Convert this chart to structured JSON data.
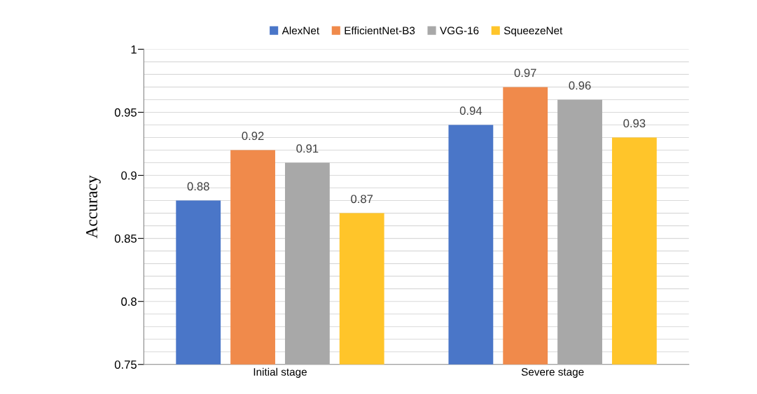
{
  "chart_data": {
    "type": "bar",
    "ylabel": "Accuracy",
    "categories": [
      "Initial stage",
      "Severe stage"
    ],
    "series": [
      {
        "name": "AlexNet",
        "color": "#4a76c8",
        "values": [
          0.88,
          0.94
        ]
      },
      {
        "name": "EfficientNet-B3",
        "color": "#f08a4b",
        "values": [
          0.92,
          0.97
        ]
      },
      {
        "name": "VGG-16",
        "color": "#a8a8a8",
        "values": [
          0.91,
          0.96
        ]
      },
      {
        "name": "SqueezeNet",
        "color": "#ffc52a",
        "values": [
          0.87,
          0.93
        ]
      }
    ],
    "ylim": [
      0.75,
      1
    ],
    "yticks": [
      0.75,
      {
        "value": 0.76,
        "label": null
      },
      {
        "value": 0.77,
        "label": null
      },
      {
        "value": 0.78,
        "label": null
      },
      {
        "value": 0.79,
        "label": null
      },
      0.8,
      {
        "value": 0.81,
        "label": null
      },
      {
        "value": 0.82,
        "label": null
      },
      {
        "value": 0.83,
        "label": null
      },
      {
        "value": 0.84,
        "label": null
      },
      0.85,
      {
        "value": 0.86,
        "label": null
      },
      {
        "value": 0.87,
        "label": null
      },
      {
        "value": 0.88,
        "label": null
      },
      {
        "value": 0.89,
        "label": null
      },
      0.9,
      {
        "value": 0.91,
        "label": null
      },
      {
        "value": 0.92,
        "label": null
      },
      {
        "value": 0.93,
        "label": null
      },
      {
        "value": 0.94,
        "label": null
      },
      0.95,
      {
        "value": 0.96,
        "label": null
      },
      {
        "value": 0.97,
        "label": null
      },
      {
        "value": 0.98,
        "label": null
      },
      {
        "value": 0.99,
        "label": null
      },
      1
    ],
    "grid": "y",
    "legend": "top",
    "data_labels": true
  }
}
